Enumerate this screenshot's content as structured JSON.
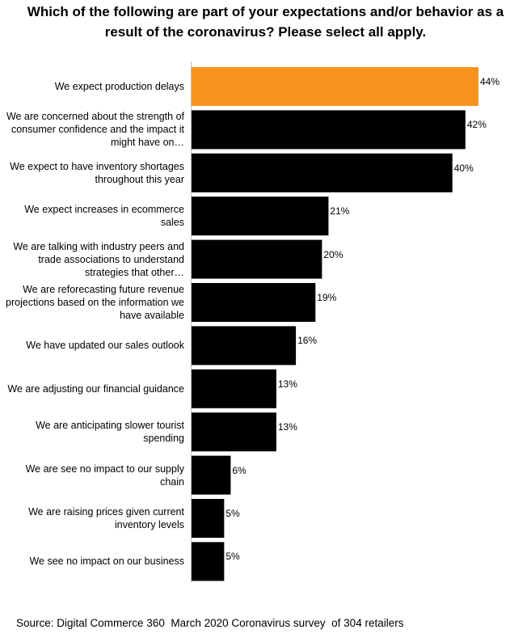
{
  "chart_data": {
    "type": "bar",
    "orientation": "horizontal",
    "title": "Which of the following are part of your expectations and/or behavior as a result of the coronavirus? Please select all apply.",
    "categories": [
      "We expect production delays",
      "We are concerned about the strength of consumer confidence and the impact it might have on…",
      "We expect to have inventory shortages throughout this year",
      "We expect increases in ecommerce sales",
      "We are talking with industry peers and trade associations to understand strategies that other…",
      "We are reforecasting future revenue projections based on the information we have available",
      "We have updated our sales outlook",
      "We are adjusting our financial guidance",
      "We are anticipating slower tourist spending",
      "We are see no impact to our supply chain",
      "We are raising prices given current inventory levels",
      "We see no impact on our business"
    ],
    "values": [
      44,
      42,
      40,
      21,
      20,
      19,
      16,
      13,
      13,
      6,
      5,
      5
    ],
    "value_labels": [
      "44%",
      "42%",
      "40%",
      "21%",
      "20%",
      "19%",
      "16%",
      "13%",
      "13%",
      "6%",
      "5%",
      "5%"
    ],
    "xlim": [
      0,
      44
    ],
    "colors": {
      "highlight": "#f7941d",
      "default": "#000000"
    },
    "highlight_index": 0,
    "legend": "none",
    "grid": false
  },
  "source": "Source: Digital Commerce 360  March 2020 Coronavirus survey  of 304 retailers"
}
